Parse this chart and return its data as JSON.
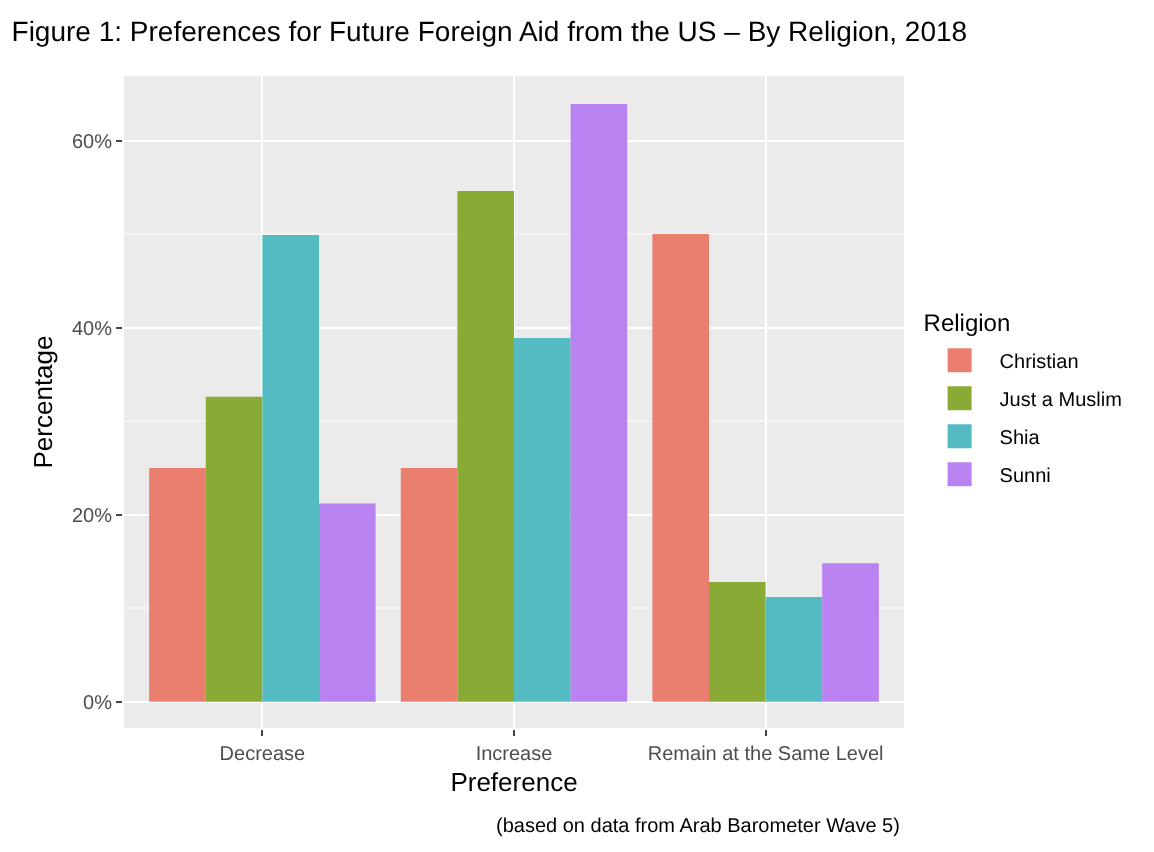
{
  "chart_data": {
    "type": "bar",
    "title": "Figure 1: Preferences for Future Foreign Aid from the US – By Religion, 2018",
    "xlabel": "Preference",
    "ylabel": "Percentage",
    "legend_title": "Religion",
    "categories": [
      "Decrease",
      "Increase",
      "Remain at the Same Level"
    ],
    "series": [
      {
        "name": "Christian",
        "color": "#ea7f70",
        "values": [
          25.0,
          25.0,
          50.0
        ]
      },
      {
        "name": "Just a Muslim",
        "color": "#89ab35",
        "values": [
          32.6,
          54.6,
          12.8
        ]
      },
      {
        "name": "Shia",
        "color": "#55bbc2",
        "values": [
          49.9,
          38.9,
          11.2
        ]
      },
      {
        "name": "Sunni",
        "color": "#b882f0",
        "values": [
          21.2,
          63.9,
          14.8
        ]
      }
    ],
    "ylim": [
      -2.8,
      66.9
    ],
    "yticks": [
      {
        "value": 0,
        "label": "0%"
      },
      {
        "value": 20,
        "label": "20%"
      },
      {
        "value": 40,
        "label": "40%"
      },
      {
        "value": 60,
        "label": "60%"
      }
    ],
    "grid": true,
    "legend": "right",
    "annotations": [
      "(based on data from Arab Barometer Wave 5)"
    ]
  }
}
